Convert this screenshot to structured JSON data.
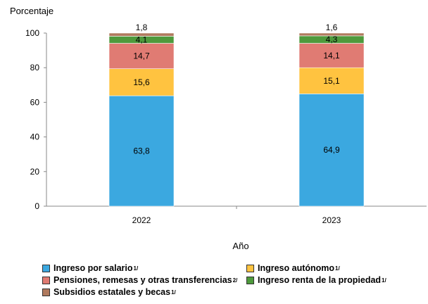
{
  "chart_data": {
    "type": "bar",
    "stacked": true,
    "ylabel": "Porcentaje",
    "xlabel": "Año",
    "categories": [
      "2022",
      "2023"
    ],
    "ylim": [
      0,
      100
    ],
    "yticks": [
      0,
      20,
      40,
      60,
      80,
      100
    ],
    "grid": false,
    "legend_position": "bottom",
    "series": [
      {
        "name": "Ingreso por salario",
        "note": "1/",
        "color": "#3BA8E0",
        "values": [
          63.8,
          64.9
        ],
        "labels": [
          "63,8",
          "64,9"
        ]
      },
      {
        "name": "Ingreso autónomo",
        "note": "1/",
        "color": "#FFC340",
        "values": [
          15.6,
          15.1
        ],
        "labels": [
          "15,6",
          "15,1"
        ]
      },
      {
        "name": "Pensiones, remesas y otras transferencias",
        "note": "2/",
        "color": "#E07B73",
        "values": [
          14.7,
          14.1
        ],
        "labels": [
          "14,7",
          "14,1"
        ]
      },
      {
        "name": "Ingreso renta de la propiedad",
        "note": "1/",
        "color": "#4E9A3C",
        "values": [
          4.1,
          4.3
        ],
        "labels": [
          "4,1",
          "4,3"
        ]
      },
      {
        "name": "Subsidios estatales y becas",
        "note": "1/",
        "color": "#B07A5E",
        "values": [
          1.8,
          1.6
        ],
        "labels": [
          "1,8",
          "1,6"
        ]
      }
    ]
  }
}
